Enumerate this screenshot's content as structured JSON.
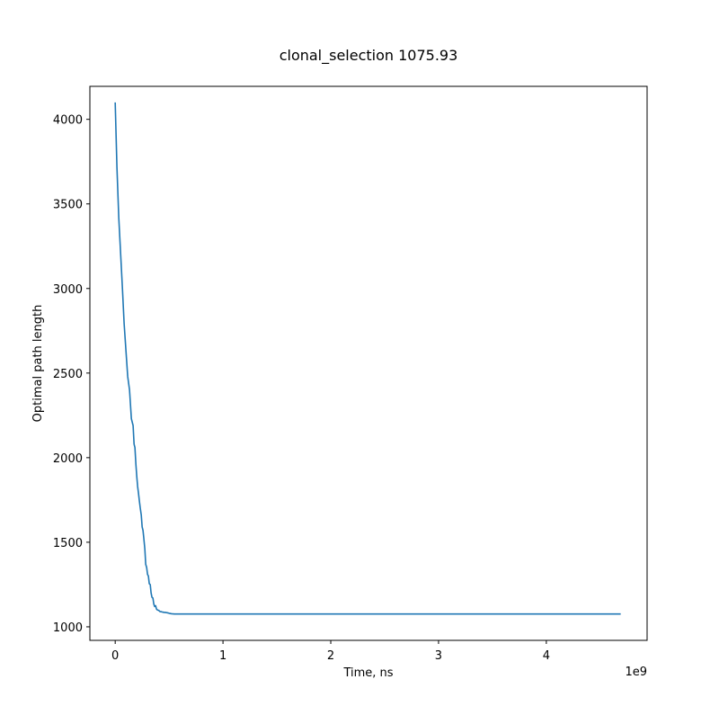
{
  "chart_data": {
    "type": "line",
    "title": "clonal_selection 1075.93",
    "xlabel": "Time, ns",
    "ylabel": "Optimal path length",
    "x_offset_label": "1e9",
    "xlim": [
      -0.235,
      4.935
    ],
    "ylim": [
      920,
      4195
    ],
    "x_ticks": [
      0,
      1,
      2,
      3,
      4
    ],
    "x_tick_labels": [
      "0",
      "1",
      "2",
      "3",
      "4"
    ],
    "y_ticks": [
      1000,
      1500,
      2000,
      2500,
      3000,
      3500,
      4000
    ],
    "y_tick_labels": [
      "1000",
      "1500",
      "2000",
      "2500",
      "3000",
      "3500",
      "4000"
    ],
    "grid": false,
    "legend": "none",
    "series": [
      {
        "color": "#1f77b4",
        "x": [
          0.0,
          0.016,
          0.033,
          0.05,
          0.067,
          0.083,
          0.1,
          0.116,
          0.133,
          0.15,
          0.166,
          0.175,
          0.183,
          0.192,
          0.2,
          0.208,
          0.216,
          0.225,
          0.233,
          0.242,
          0.25,
          0.258,
          0.266,
          0.275,
          0.283,
          0.292,
          0.3,
          0.308,
          0.316,
          0.325,
          0.333,
          0.341,
          0.35,
          0.358,
          0.366,
          0.375,
          0.383,
          0.391,
          0.4,
          0.408,
          0.416,
          0.425,
          0.433,
          0.441,
          0.45,
          0.458,
          0.466,
          0.475,
          0.483,
          0.491,
          0.5,
          0.508,
          0.516,
          0.525,
          0.55,
          0.583,
          0.616,
          0.666,
          0.716,
          0.8,
          1.0,
          2.0,
          3.0,
          4.0,
          4.69
        ],
        "y": [
          4100,
          3720,
          3420,
          3210,
          3000,
          2790,
          2630,
          2480,
          2400,
          2230,
          2190,
          2080,
          2060,
          1960,
          1890,
          1830,
          1790,
          1740,
          1700,
          1660,
          1590,
          1570,
          1520,
          1460,
          1370,
          1350,
          1310,
          1300,
          1255,
          1250,
          1200,
          1175,
          1170,
          1135,
          1120,
          1125,
          1105,
          1100,
          1098,
          1095,
          1090,
          1090,
          1088,
          1087,
          1086,
          1085,
          1085,
          1084,
          1083,
          1082,
          1080,
          1079,
          1078,
          1077,
          1076,
          1076,
          1076,
          1076,
          1076,
          1076,
          1076,
          1076,
          1076,
          1076,
          1076
        ]
      }
    ]
  }
}
